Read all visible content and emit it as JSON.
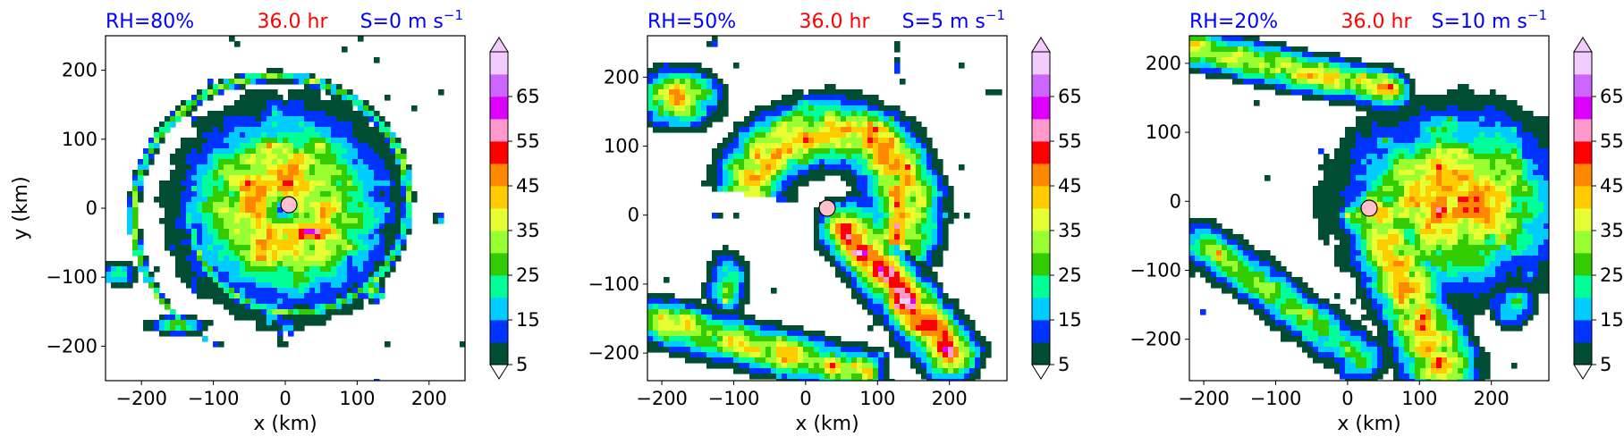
{
  "figure": {
    "palette": [
      "#004d33",
      "#0033ff",
      "#00ccff",
      "#00ff99",
      "#33cc00",
      "#99ff33",
      "#e6ff33",
      "#ffcc00",
      "#ff8800",
      "#ff0000",
      "#ff99cc",
      "#dd00ff",
      "#cc66ff",
      "#f2ccff"
    ]
  },
  "chart_data": [
    {
      "type": "heatmap",
      "title_left": "RH=80%",
      "title_center": "36.0 hr",
      "title_right_prefix": "S=0 m s",
      "title_right_sup": "−1",
      "title_colors": {
        "left": "#0000ff",
        "center": "#ff0000",
        "right": "#0000ff"
      },
      "xlabel": "x (km)",
      "ylabel": "y (km)",
      "xlim": [
        -250,
        250
      ],
      "ylim": [
        -250,
        250
      ],
      "xticks": [
        -200,
        -100,
        0,
        100,
        200
      ],
      "yticks": [
        -200,
        -100,
        0,
        100,
        200
      ],
      "xtick_labels": [
        "−200",
        "−100",
        "0",
        "100",
        "200"
      ],
      "ytick_labels": [
        "−200",
        "−100",
        "0",
        "100",
        "200"
      ],
      "colorbar": {
        "levels": [
          5,
          10,
          15,
          20,
          25,
          30,
          35,
          40,
          45,
          50,
          55,
          60,
          65,
          70
        ],
        "ticks": [
          5,
          15,
          25,
          35,
          45,
          55,
          65
        ],
        "extend": "both"
      },
      "center_marker": {
        "x": 5,
        "y": 5
      },
      "features": [
        {
          "kind": "ring",
          "cx": 0,
          "cy": 0,
          "r": 120,
          "peak": 45
        },
        {
          "kind": "spiral",
          "cx": 0,
          "cy": 0,
          "r0": 130,
          "r1": 220,
          "start_deg": 180,
          "sweep_deg": 400,
          "peak": 30
        },
        {
          "kind": "blob",
          "x": -230,
          "y": -95,
          "rx": 25,
          "ry": 15,
          "peak": 25
        },
        {
          "kind": "blob",
          "x": -150,
          "y": -170,
          "rx": 35,
          "ry": 12,
          "peak": 30
        },
        {
          "kind": "blob",
          "x": 120,
          "y": -120,
          "rx": 15,
          "ry": 10,
          "peak": 30
        },
        {
          "kind": "blob",
          "x": 215,
          "y": -15,
          "rx": 8,
          "ry": 6,
          "peak": 20
        }
      ]
    },
    {
      "type": "heatmap",
      "title_left": "RH=50%",
      "title_center": "36.0 hr",
      "title_right_prefix": "S=5 m s",
      "title_right_sup": "−1",
      "title_colors": {
        "left": "#0000ff",
        "center": "#ff0000",
        "right": "#0000ff"
      },
      "xlabel": "x (km)",
      "ylabel": "",
      "xlim": [
        -220,
        280
      ],
      "ylim": [
        -240,
        260
      ],
      "xticks": [
        -200,
        -100,
        0,
        100,
        200
      ],
      "yticks": [
        -200,
        -100,
        0,
        100,
        200
      ],
      "xtick_labels": [
        "−200",
        "−100",
        "0",
        "100",
        "200"
      ],
      "ytick_labels": [
        "−200",
        "−100",
        "0",
        "100",
        "200"
      ],
      "colorbar": {
        "levels": [
          5,
          10,
          15,
          20,
          25,
          30,
          35,
          40,
          45,
          50,
          55,
          60,
          65,
          70
        ],
        "ticks": [
          5,
          15,
          25,
          35,
          45,
          55,
          65
        ],
        "extend": "both"
      },
      "center_marker": {
        "x": 30,
        "y": 10
      },
      "features": [
        {
          "kind": "arc",
          "cx": 30,
          "cy": 10,
          "r": 110,
          "start_deg": -30,
          "sweep_deg": 200,
          "width": 90,
          "peak": 45
        },
        {
          "kind": "band",
          "x0": 60,
          "y0": -20,
          "x1": 200,
          "y1": -200,
          "width": 70,
          "peak": 55
        },
        {
          "kind": "band",
          "x0": -220,
          "y0": -150,
          "x1": 80,
          "y1": -230,
          "width": 60,
          "peak": 40
        },
        {
          "kind": "blob",
          "x": -180,
          "y": 170,
          "rx": 50,
          "ry": 35,
          "peak": 50
        },
        {
          "kind": "blob",
          "x": -110,
          "y": -100,
          "rx": 25,
          "ry": 40,
          "peak": 30
        }
      ]
    },
    {
      "type": "heatmap",
      "title_left": "RH=20%",
      "title_center": "36.0 hr",
      "title_right_prefix": "S=10 m s",
      "title_right_sup": "−1",
      "title_colors": {
        "left": "#0000ff",
        "center": "#ff0000",
        "right": "#0000ff"
      },
      "xlabel": "x (km)",
      "ylabel": "",
      "xlim": [
        -220,
        280
      ],
      "ylim": [
        -260,
        240
      ],
      "xticks": [
        -200,
        -100,
        0,
        100,
        200
      ],
      "yticks": [
        -200,
        -100,
        0,
        100,
        200
      ],
      "xtick_labels": [
        "−200",
        "−100",
        "0",
        "100",
        "200"
      ],
      "ytick_labels": [
        "−200",
        "−100",
        "0",
        "100",
        "200"
      ],
      "colorbar": {
        "levels": [
          5,
          10,
          15,
          20,
          25,
          30,
          35,
          40,
          45,
          50,
          55,
          60,
          65,
          70
        ],
        "ticks": [
          5,
          15,
          25,
          35,
          45,
          55,
          65
        ],
        "extend": "both"
      },
      "center_marker": {
        "x": 30,
        "y": -10
      },
      "features": [
        {
          "kind": "blob",
          "x": 150,
          "y": 0,
          "rx": 130,
          "ry": 110,
          "peak": 50
        },
        {
          "kind": "band",
          "x0": 40,
          "y0": -20,
          "x1": 130,
          "y1": -240,
          "width": 90,
          "peak": 45
        },
        {
          "kind": "band",
          "x0": -210,
          "y0": 220,
          "x1": 60,
          "y1": 160,
          "width": 50,
          "peak": 40
        },
        {
          "kind": "band",
          "x0": -200,
          "y0": -60,
          "x1": 20,
          "y1": -230,
          "width": 60,
          "peak": 30
        },
        {
          "kind": "blob",
          "x": 230,
          "y": -150,
          "rx": 30,
          "ry": 30,
          "peak": 25
        }
      ]
    }
  ]
}
